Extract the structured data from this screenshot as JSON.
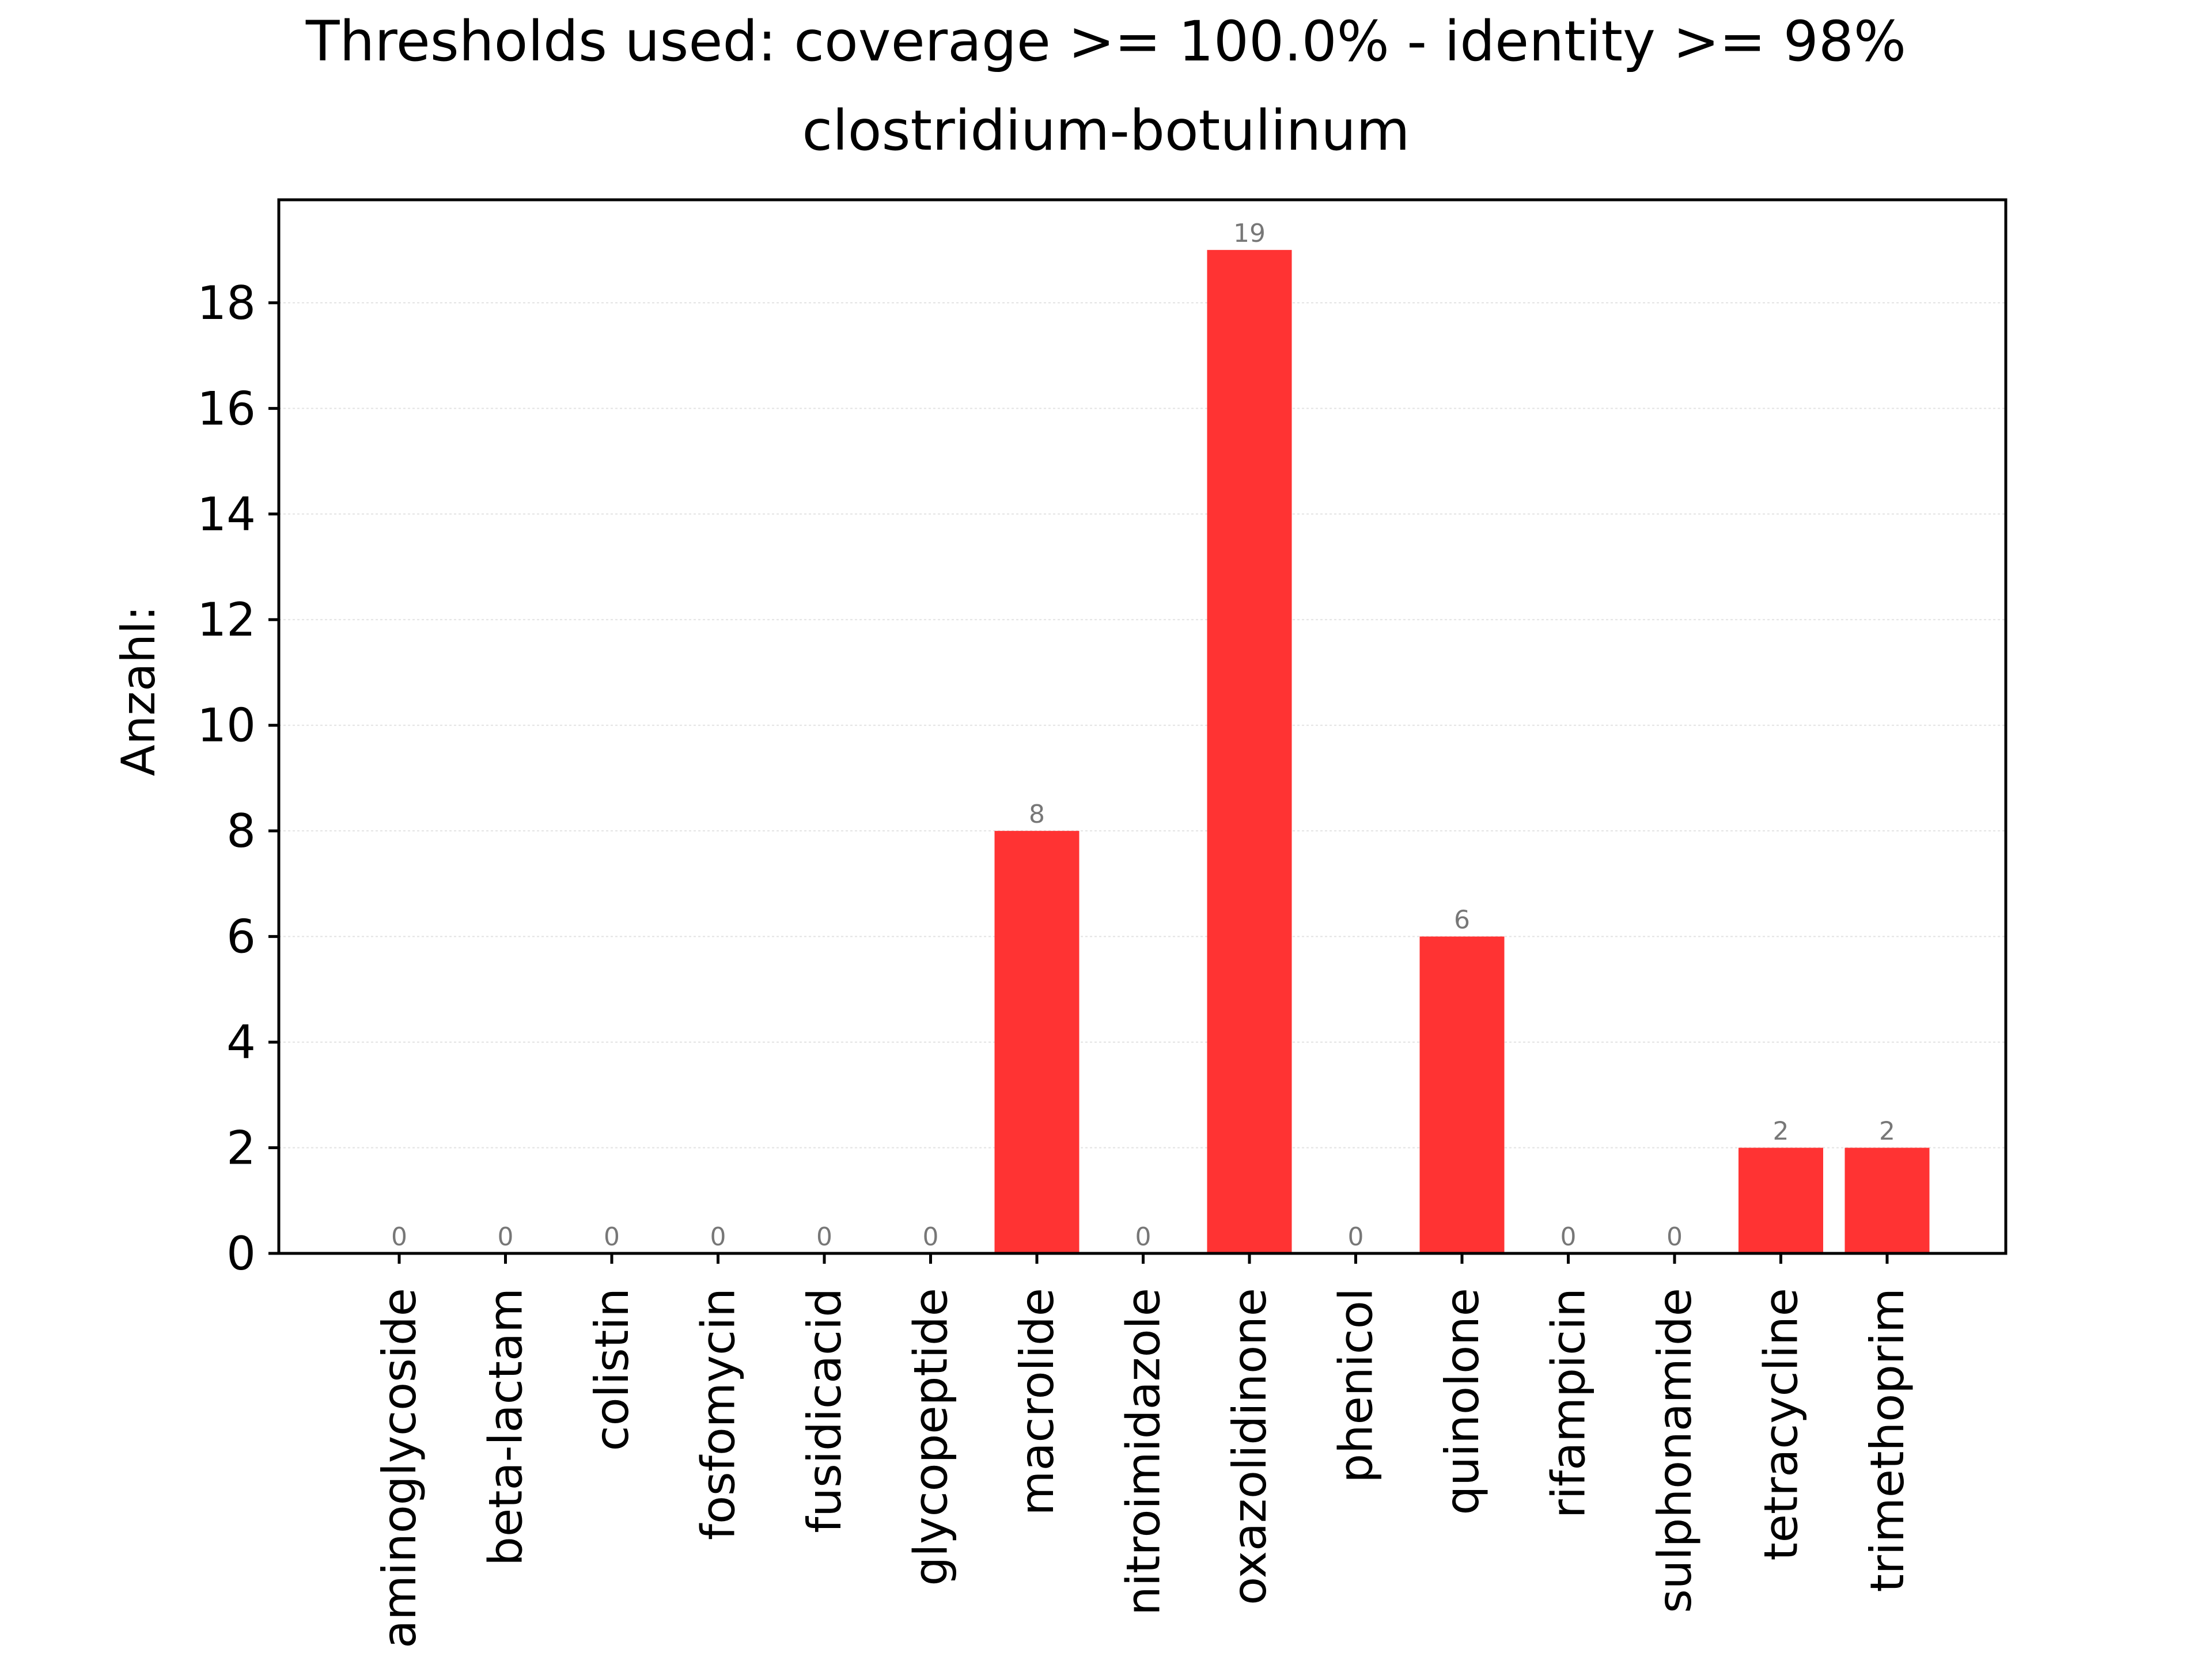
{
  "chart_data": {
    "type": "bar",
    "title": "Thresholds used: coverage >= 100.0% - identity >= 98%",
    "subtitle": "clostridium-botulinum",
    "xlabel": "",
    "ylabel": "Anzahl:",
    "categories": [
      "aminoglycoside",
      "beta-lactam",
      "colistin",
      "fosfomycin",
      "fusidicacid",
      "glycopeptide",
      "macrolide",
      "nitroimidazole",
      "oxazolidinone",
      "phenicol",
      "quinolone",
      "rifampicin",
      "sulphonamide",
      "tetracycline",
      "trimethoprim"
    ],
    "values": [
      0,
      0,
      0,
      0,
      0,
      0,
      8,
      0,
      19,
      0,
      6,
      0,
      0,
      2,
      2
    ],
    "data_labels": [
      "0",
      "0",
      "0",
      "0",
      "0",
      "0",
      "8",
      "0",
      "19",
      "0",
      "6",
      "0",
      "0",
      "2",
      "2"
    ],
    "ylim": [
      0,
      19.95
    ],
    "yticks": [
      0,
      2,
      4,
      6,
      8,
      10,
      12,
      14,
      16,
      18
    ],
    "ytick_labels": [
      "0",
      "2",
      "4",
      "6",
      "8",
      "10",
      "12",
      "14",
      "16",
      "18"
    ],
    "grid": true,
    "legend": "none",
    "bar_color": "#ff3333",
    "label_color": "#777777"
  }
}
